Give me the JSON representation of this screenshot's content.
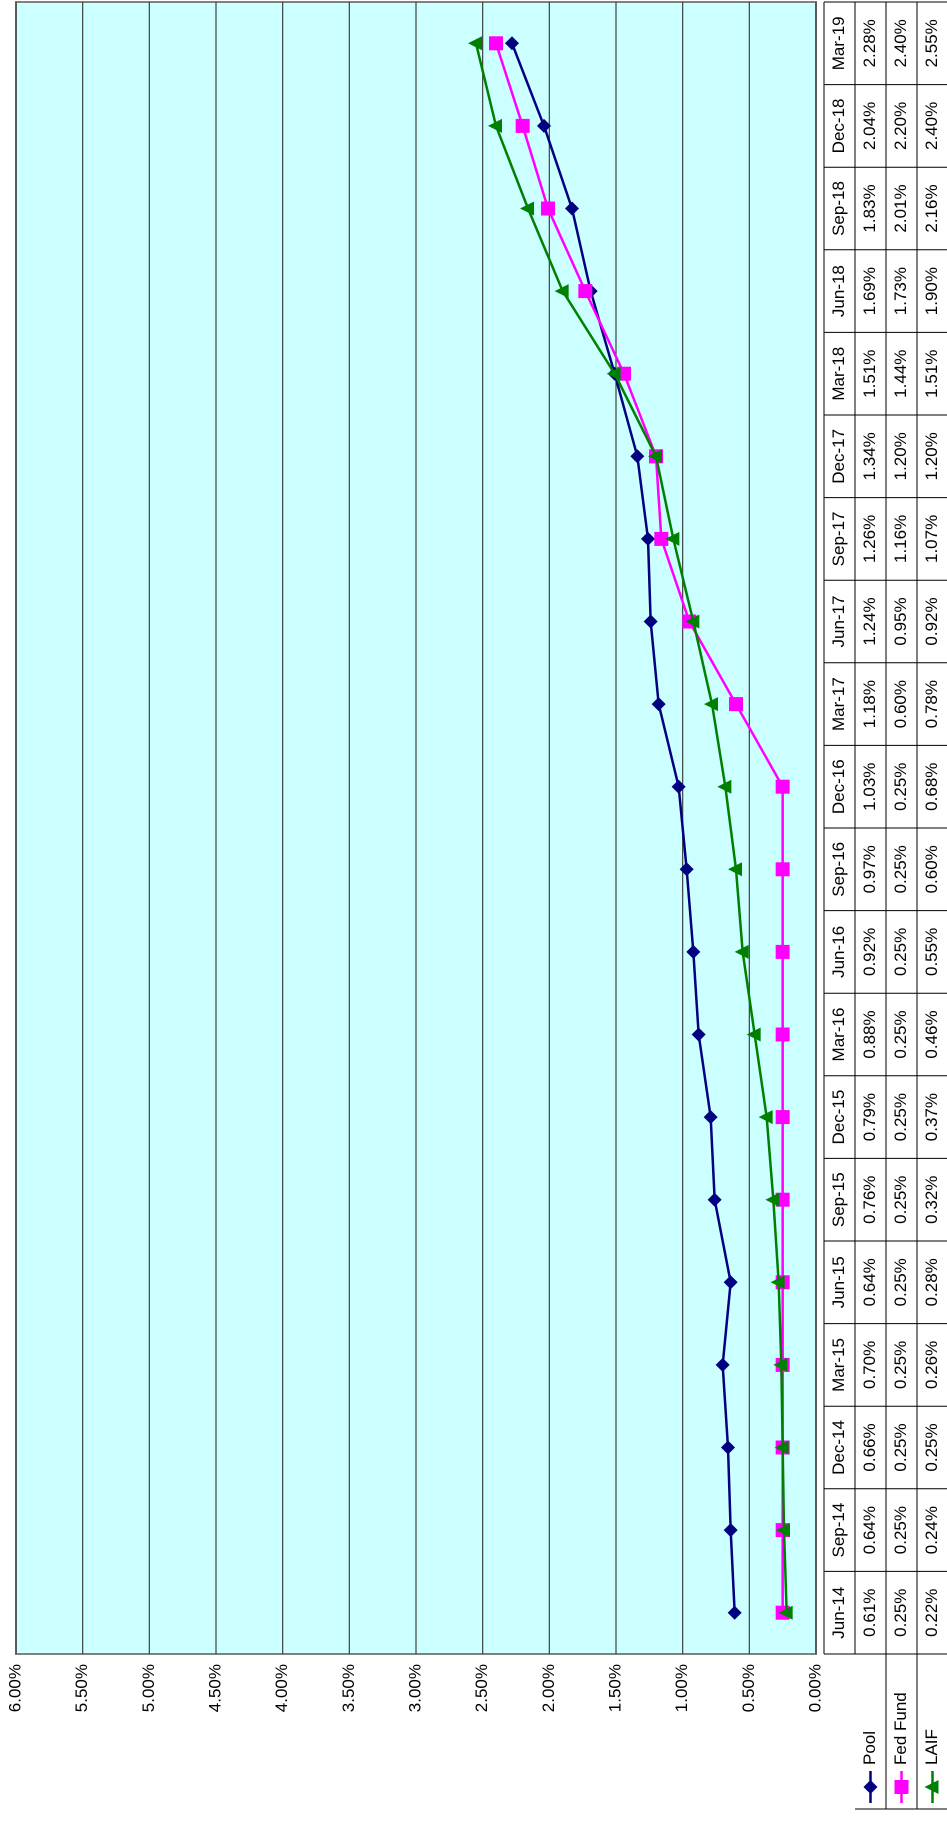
{
  "chart_data": {
    "type": "line",
    "categories": [
      "Jun-14",
      "Sep-14",
      "Dec-14",
      "Mar-15",
      "Jun-15",
      "Sep-15",
      "Dec-15",
      "Mar-16",
      "Jun-16",
      "Sep-16",
      "Dec-16",
      "Mar-17",
      "Jun-17",
      "Sep-17",
      "Dec-17",
      "Mar-18",
      "Jun-18",
      "Sep-18",
      "Dec-18",
      "Mar-19"
    ],
    "series": [
      {
        "name": "Pool",
        "color": "#000080",
        "marker": "diamond",
        "values": [
          0.61,
          0.64,
          0.66,
          0.7,
          0.64,
          0.76,
          0.79,
          0.88,
          0.92,
          0.97,
          1.03,
          1.18,
          1.24,
          1.26,
          1.34,
          1.51,
          1.69,
          1.83,
          2.04,
          2.28
        ],
        "value_labels": [
          "0.61%",
          "0.64%",
          "0.66%",
          "0.70%",
          "0.64%",
          "0.76%",
          "0.79%",
          "0.88%",
          "0.92%",
          "0.97%",
          "1.03%",
          "1.18%",
          "1.24%",
          "1.26%",
          "1.34%",
          "1.51%",
          "1.69%",
          "1.83%",
          "2.04%",
          "2.28%"
        ]
      },
      {
        "name": "Fed Fund",
        "color": "#ff00ff",
        "marker": "square",
        "values": [
          0.25,
          0.25,
          0.25,
          0.25,
          0.25,
          0.25,
          0.25,
          0.25,
          0.25,
          0.25,
          0.25,
          0.6,
          0.95,
          1.16,
          1.2,
          1.44,
          1.73,
          2.01,
          2.2,
          2.4
        ],
        "value_labels": [
          "0.25%",
          "0.25%",
          "0.25%",
          "0.25%",
          "0.25%",
          "0.25%",
          "0.25%",
          "0.25%",
          "0.25%",
          "0.25%",
          "0.25%",
          "0.60%",
          "0.95%",
          "1.16%",
          "1.20%",
          "1.44%",
          "1.73%",
          "2.01%",
          "2.20%",
          "2.40%"
        ]
      },
      {
        "name": "LAIF",
        "color": "#008000",
        "marker": "triangle",
        "values": [
          0.22,
          0.24,
          0.25,
          0.26,
          0.28,
          0.32,
          0.37,
          0.46,
          0.55,
          0.6,
          0.68,
          0.78,
          0.92,
          1.07,
          1.2,
          1.51,
          1.9,
          2.16,
          2.4,
          2.55
        ],
        "value_labels": [
          "0.22%",
          "0.24%",
          "0.25%",
          "0.26%",
          "0.28%",
          "0.32%",
          "0.37%",
          "0.46%",
          "0.55%",
          "0.60%",
          "0.68%",
          "0.78%",
          "0.92%",
          "1.07%",
          "1.20%",
          "1.51%",
          "1.90%",
          "2.16%",
          "2.40%",
          "2.55%"
        ]
      }
    ],
    "ylim": [
      0,
      6
    ],
    "yticks": [
      {
        "value": 0,
        "label": "0.00%"
      },
      {
        "value": 0.5,
        "label": "0.50%"
      },
      {
        "value": 1,
        "label": "1.00%"
      },
      {
        "value": 1.5,
        "label": "1.50%"
      },
      {
        "value": 2,
        "label": "2.00%"
      },
      {
        "value": 2.5,
        "label": "2.50%"
      },
      {
        "value": 3,
        "label": "3.00%"
      },
      {
        "value": 3.5,
        "label": "3.50%"
      },
      {
        "value": 4,
        "label": "4.00%"
      },
      {
        "value": 4.5,
        "label": "4.50%"
      },
      {
        "value": 5,
        "label": "5.00%"
      },
      {
        "value": 5.5,
        "label": "5.50%"
      },
      {
        "value": 6,
        "label": "6.00%"
      }
    ],
    "grid": true,
    "plot_background": "#ccffff",
    "rotated": true
  }
}
